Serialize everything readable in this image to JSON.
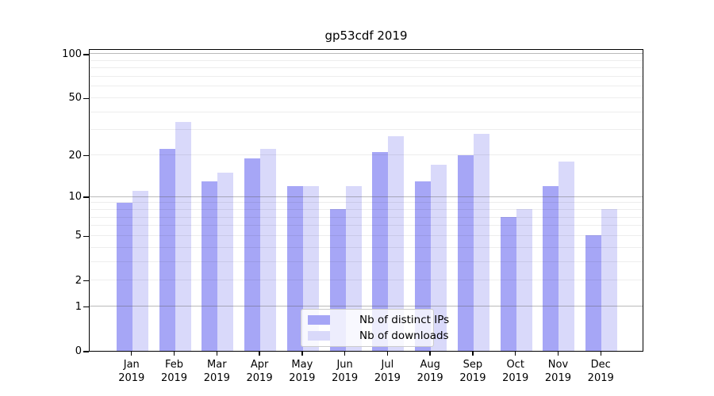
{
  "chart_data": {
    "type": "bar",
    "title": "gp53cdf 2019",
    "categories": [
      "Jan",
      "Feb",
      "Mar",
      "Apr",
      "May",
      "Jun",
      "Jul",
      "Aug",
      "Sep",
      "Oct",
      "Nov",
      "Dec"
    ],
    "category_year": "2019",
    "series": [
      {
        "name": "Nb of distinct IPs",
        "color": "#a6a6f6",
        "values": [
          9,
          22,
          13,
          19,
          12,
          8,
          21,
          13,
          20,
          7,
          12,
          5
        ]
      },
      {
        "name": "Nb of downloads",
        "color": "#d9d9fa",
        "values": [
          11,
          34,
          15,
          22,
          12,
          12,
          27,
          17,
          28,
          8,
          18,
          8
        ]
      }
    ],
    "yscale": "log1p",
    "ylim": [
      0,
      109
    ],
    "yticks": [
      0,
      1,
      2,
      5,
      10,
      20,
      50,
      100
    ],
    "grid_major": [
      1,
      10,
      100
    ],
    "grid_minor": [
      2,
      3,
      4,
      5,
      6,
      7,
      8,
      9,
      20,
      30,
      40,
      50,
      60,
      70,
      80,
      90
    ],
    "legend_position": "lower center",
    "grid": "on"
  }
}
